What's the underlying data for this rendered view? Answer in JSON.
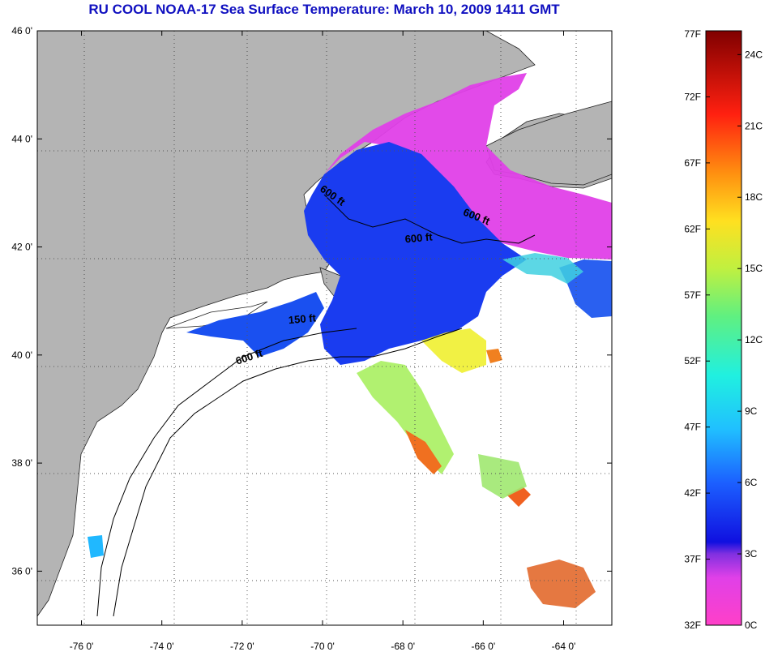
{
  "title": "RU COOL  NOAA-17  Sea Surface Temperature:  March 10, 2009 1411 GMT",
  "lat_ticks": [
    {
      "label": "46 0'",
      "value": 46
    },
    {
      "label": "44 0'",
      "value": 44
    },
    {
      "label": "42 0'",
      "value": 42
    },
    {
      "label": "40 0'",
      "value": 40
    },
    {
      "label": "38 0'",
      "value": 38
    },
    {
      "label": "36 0'",
      "value": 36
    }
  ],
  "lon_ticks": [
    {
      "label": "-76 0'",
      "value": -76
    },
    {
      "label": "-74 0'",
      "value": -74
    },
    {
      "label": "-72 0'",
      "value": -72
    },
    {
      "label": "-70 0'",
      "value": -70
    },
    {
      "label": "-68 0'",
      "value": -68
    },
    {
      "label": "-66 0'",
      "value": -66
    },
    {
      "label": "-64 0'",
      "value": -64
    }
  ],
  "contour_labels": [
    {
      "text": "600 ft",
      "lon": -69.8,
      "lat": 42.9,
      "rotate": 35
    },
    {
      "text": "600 ft",
      "lon": -66.2,
      "lat": 42.5,
      "rotate": 22
    },
    {
      "text": "600 ft",
      "lon": -67.6,
      "lat": 42.1,
      "rotate": -5
    },
    {
      "text": "150 ft",
      "lon": -70.5,
      "lat": 40.6,
      "rotate": -5
    },
    {
      "text": "600 ft",
      "lon": -71.8,
      "lat": 39.9,
      "rotate": -18
    }
  ],
  "colorbar": {
    "fahrenheit": [
      "77F",
      "72F",
      "67F",
      "62F",
      "57F",
      "52F",
      "47F",
      "42F",
      "37F",
      "32F"
    ],
    "celsius": [
      "24C",
      "21C",
      "18C",
      "15C",
      "12C",
      "9C",
      "6C",
      "3C",
      "0C"
    ],
    "min_f": 32,
    "max_f": 77
  },
  "colors": {
    "land": "#b4b4b4",
    "water_blue": "#1a3cf0",
    "magenta": "#e040e8",
    "title": "#1010c0"
  }
}
